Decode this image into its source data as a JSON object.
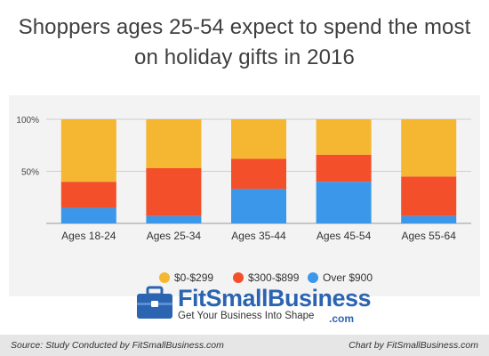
{
  "colors": {
    "bracket_low": "#f5b731",
    "bracket_mid": "#f34f2a",
    "bracket_high": "#3b97ea",
    "logo_blue": "#2b64b1"
  },
  "chart_data": {
    "type": "bar",
    "stacked": true,
    "title": "Shoppers ages 25-54 expect to spend the most on holiday gifts in 2016",
    "title_lines": [
      "Shoppers ages 25-54 expect to spend the most",
      "on holiday gifts in 2016"
    ],
    "categories": [
      "Ages 18-24",
      "Ages 25-34",
      "Ages 35-44",
      "Ages 45-54",
      "Ages 55-64"
    ],
    "series": [
      {
        "name": "Over $900",
        "color": "#3b97ea",
        "values": [
          15,
          7,
          33,
          40,
          7
        ]
      },
      {
        "name": "$300-$899",
        "color": "#f34f2a",
        "values": [
          25,
          46,
          29,
          26,
          38
        ]
      },
      {
        "name": "$0-$299",
        "color": "#f5b731",
        "values": [
          60,
          47,
          38,
          34,
          55
        ]
      }
    ],
    "legend_order": [
      "$0-$299",
      "$300-$899",
      "Over $900"
    ],
    "yticks": [
      "100%",
      "50%"
    ],
    "ylim": [
      0,
      100
    ],
    "legend_position": "bottom",
    "grid": true
  },
  "logo": {
    "name": "FitSmallBusiness",
    "tagline": "Get Your Business Into Shape",
    "suffix": ".com",
    "icon": "briefcase-icon"
  },
  "footer": {
    "source": "Source: Study Conducted by FitSmallBusiness.com",
    "credit": "Chart by FitSmallBusiness.com"
  }
}
